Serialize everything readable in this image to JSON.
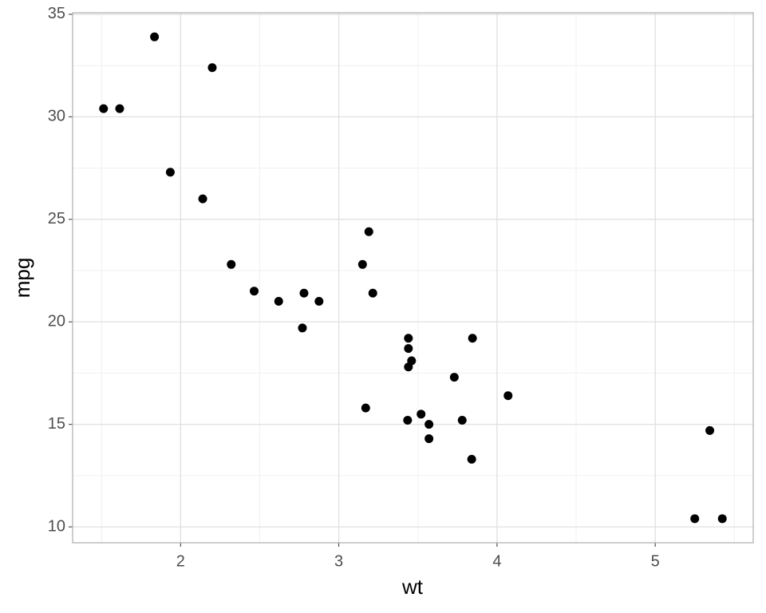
{
  "chart_data": {
    "type": "scatter",
    "x_label": "wt",
    "y_label": "mpg",
    "x": [
      2.62,
      2.875,
      2.32,
      3.215,
      3.44,
      3.46,
      3.57,
      3.19,
      3.15,
      3.44,
      3.44,
      4.07,
      3.73,
      3.78,
      5.25,
      5.424,
      5.345,
      2.2,
      1.615,
      1.835,
      2.465,
      3.52,
      3.435,
      3.84,
      3.845,
      1.935,
      2.14,
      1.513,
      3.17,
      2.77,
      3.57,
      2.78
    ],
    "values": [
      21.0,
      21.0,
      22.8,
      21.4,
      18.7,
      18.1,
      14.3,
      24.4,
      22.8,
      19.2,
      17.8,
      16.4,
      17.3,
      15.2,
      10.4,
      10.4,
      14.7,
      32.4,
      30.4,
      33.9,
      21.5,
      15.5,
      15.2,
      13.3,
      19.2,
      27.3,
      26.0,
      30.4,
      15.8,
      19.7,
      15.0,
      21.4
    ],
    "color": "#000000",
    "xlim": [
      1.31745,
      5.61955
    ],
    "ylim": [
      9.225,
      35.075
    ],
    "xticks": [
      2,
      3,
      4,
      5
    ],
    "yticks": [
      10,
      15,
      20,
      25,
      30,
      35
    ],
    "x_minor_ticks": [
      1.5,
      2.5,
      3.5,
      4.5,
      5.5
    ],
    "y_minor_ticks": [
      12.5,
      17.5,
      22.5,
      27.5,
      32.5
    ],
    "grid": true
  }
}
